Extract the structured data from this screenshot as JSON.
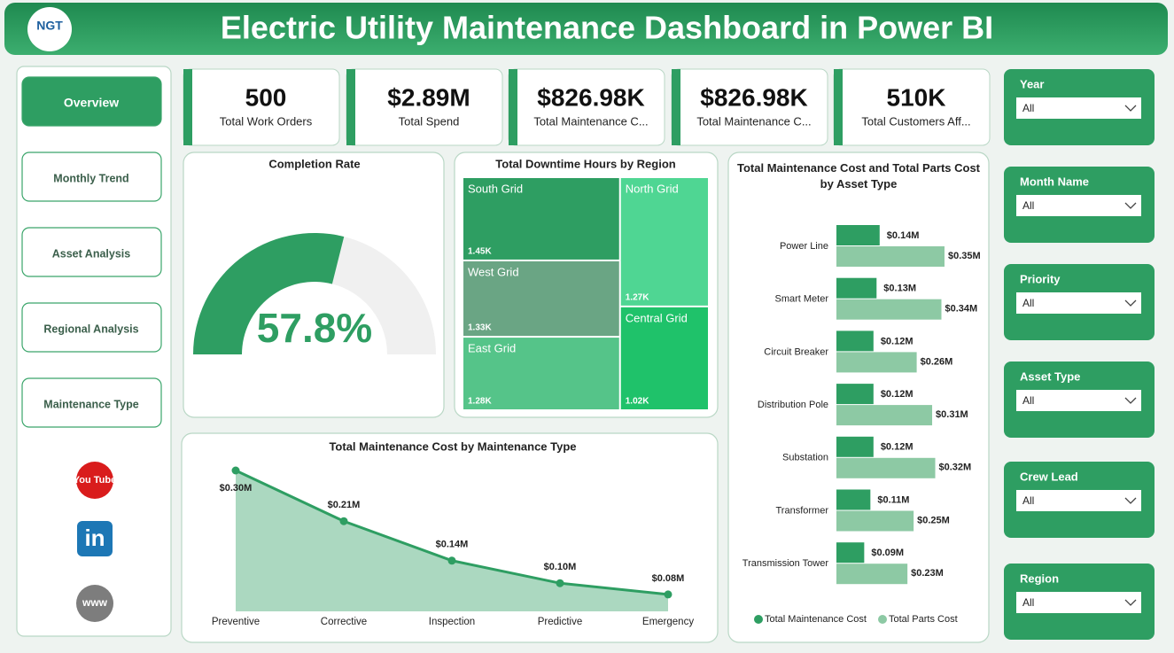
{
  "header": {
    "logo": "NGT",
    "title": "Electric Utility Maintenance Dashboard in Power BI"
  },
  "nav": [
    "Overview",
    "Monthly Trend",
    "Asset Analysis",
    "Regional Analysis",
    "Maintenance Type"
  ],
  "social": [
    "You Tube",
    "in",
    "www"
  ],
  "kpis": [
    {
      "value": "500",
      "label": "Total Work Orders"
    },
    {
      "value": "$2.89M",
      "label": "Total Spend"
    },
    {
      "value": "$826.98K",
      "label": "Total Maintenance C..."
    },
    {
      "value": "$826.98K",
      "label": "Total Maintenance C..."
    },
    {
      "value": "510K",
      "label": "Total Customers Aff..."
    }
  ],
  "chart_data": [
    {
      "type": "gauge",
      "title": "Completion Rate",
      "value": 57.8,
      "value_label": "57.8%",
      "ylim": [
        0,
        100
      ],
      "color": "#2e9e62"
    },
    {
      "type": "treemap",
      "title": "Total Downtime Hours by Region",
      "categories": [
        "South Grid",
        "North Grid",
        "West Grid",
        "Central Grid",
        "East Grid"
      ],
      "values": [
        1450,
        1270,
        1330,
        1020,
        1280
      ],
      "value_labels": [
        "1.45K",
        "1.27K",
        "1.33K",
        "1.02K",
        "1.28K"
      ],
      "colors": [
        "#2e9e62",
        "#4fd693",
        "#6aa584",
        "#1fc26a",
        "#55c489"
      ]
    },
    {
      "type": "area",
      "title": "Total Maintenance Cost by Maintenance Type",
      "categories": [
        "Preventive",
        "Corrective",
        "Inspection",
        "Predictive",
        "Emergency"
      ],
      "values": [
        0.3,
        0.21,
        0.14,
        0.1,
        0.08
      ],
      "value_labels": [
        "$0.30M",
        "$0.21M",
        "$0.14M",
        "$0.10M",
        "$0.08M"
      ],
      "ylim": [
        0.05,
        0.3
      ],
      "color": "#2e9e62"
    },
    {
      "type": "hbar",
      "title": "Total Maintenance Cost and Total Parts Cost by Asset Type",
      "categories": [
        "Power Line",
        "Smart Meter",
        "Circuit Breaker",
        "Distribution Pole",
        "Substation",
        "Transformer",
        "Transmission Tower"
      ],
      "series": [
        {
          "name": "Total Maintenance Cost",
          "color": "#2e9e62",
          "values": [
            0.14,
            0.13,
            0.12,
            0.12,
            0.12,
            0.11,
            0.09
          ],
          "value_labels": [
            "$0.14M",
            "$0.13M",
            "$0.12M",
            "$0.12M",
            "$0.12M",
            "$0.11M",
            "$0.09M"
          ]
        },
        {
          "name": "Total Parts Cost",
          "color": "#8dc9a4",
          "values": [
            0.35,
            0.34,
            0.26,
            0.31,
            0.32,
            0.25,
            0.23
          ],
          "value_labels": [
            "$0.35M",
            "$0.34M",
            "$0.26M",
            "$0.31M",
            "$0.32M",
            "$0.25M",
            "$0.23M"
          ]
        }
      ],
      "xlim": [
        0,
        0.4
      ],
      "legend": "bottom"
    }
  ],
  "slicers": [
    {
      "label": "Year",
      "value": "All"
    },
    {
      "label": "Month Name",
      "value": "All"
    },
    {
      "label": "Priority",
      "value": "All"
    },
    {
      "label": "Asset Type",
      "value": "All"
    },
    {
      "label": "Crew Lead",
      "value": "All"
    },
    {
      "label": "Region",
      "value": "All"
    }
  ]
}
